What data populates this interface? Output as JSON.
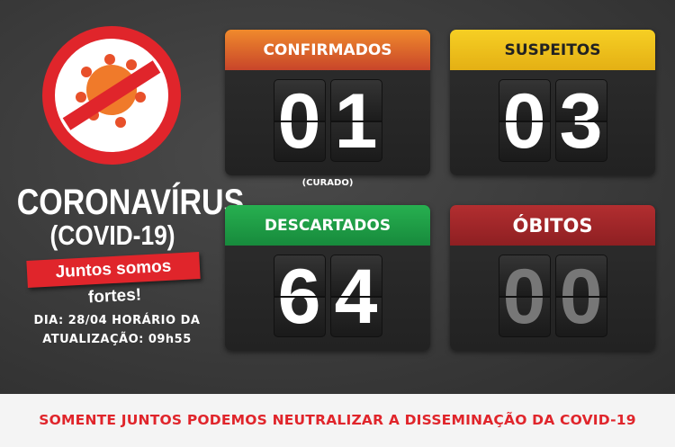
{
  "left": {
    "title": "CORONAVÍRUS",
    "subtitle": "(COVID-19)",
    "ribbon": "Juntos somos fortes!",
    "date_line1": "DIA: 28/04 HORÁRIO DA",
    "date_line2": "ATUALIZAÇÃO: 09h55"
  },
  "panels": {
    "confirmados": {
      "label": "CONFIRMADOS",
      "d1": "0",
      "d2": "1",
      "note": "(CURADO)",
      "color": "#e8722c"
    },
    "suspeitos": {
      "label": "SUSPEITOS",
      "d1": "0",
      "d2": "3",
      "color": "#f2c21b"
    },
    "descartados": {
      "label": "DESCARTADOS",
      "d1": "6",
      "d2": "4",
      "color": "#1f9a45"
    },
    "obitos": {
      "label": "ÓBITOS",
      "d1": "0",
      "d2": "0",
      "color": "#a3262a"
    }
  },
  "footer": "SOMENTE JUNTOS PODEMOS NEUTRALIZAR A DISSEMINAÇÃO DA COVID-19"
}
